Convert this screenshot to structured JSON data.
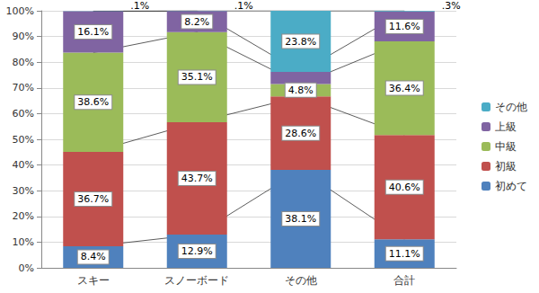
{
  "chart_data": {
    "type": "bar",
    "categories": [
      "スキー",
      "スノーボード",
      "その他",
      "合計"
    ],
    "series": [
      {
        "name": "初めて",
        "color": "#4f81bd",
        "values": [
          8.4,
          12.9,
          38.1,
          11.1
        ],
        "value_labels": [
          "8.4%",
          "12.9%",
          "38.1%",
          "11.1%"
        ]
      },
      {
        "name": "初級",
        "color": "#c0504d",
        "values": [
          36.7,
          43.7,
          28.6,
          40.6
        ],
        "value_labels": [
          "36.7%",
          "43.7%",
          "28.6%",
          "40.6%"
        ]
      },
      {
        "name": "中級",
        "color": "#9bbb59",
        "values": [
          38.6,
          35.1,
          4.8,
          36.4
        ],
        "value_labels": [
          "38.6%",
          "35.1%",
          "4.8%",
          "36.4%"
        ]
      },
      {
        "name": "上級",
        "color": "#8064a2",
        "values": [
          16.1,
          8.2,
          4.7,
          11.6
        ],
        "value_labels": [
          "16.1%",
          "8.2%",
          null,
          "11.6%"
        ]
      },
      {
        "name": "その他",
        "color": "#4bacc6",
        "values": [
          0.1,
          0.1,
          23.8,
          0.3
        ],
        "value_labels": [
          ".1%",
          ".1%",
          "23.8%",
          ".3%"
        ]
      }
    ],
    "ylim": [
      0,
      100
    ],
    "yticks": [
      {
        "value": 0,
        "label": "0%"
      },
      {
        "value": 10,
        "label": "10%"
      },
      {
        "value": 20,
        "label": "20%"
      },
      {
        "value": 30,
        "label": "30%"
      },
      {
        "value": 40,
        "label": "40%"
      },
      {
        "value": 50,
        "label": "50%"
      },
      {
        "value": 60,
        "label": "60%"
      },
      {
        "value": 70,
        "label": "70%"
      },
      {
        "value": 80,
        "label": "80%"
      },
      {
        "value": 90,
        "label": "90%"
      },
      {
        "value": 100,
        "label": "100%"
      }
    ],
    "stacked": true,
    "data_labels": true,
    "legend": "right",
    "grid": true
  }
}
